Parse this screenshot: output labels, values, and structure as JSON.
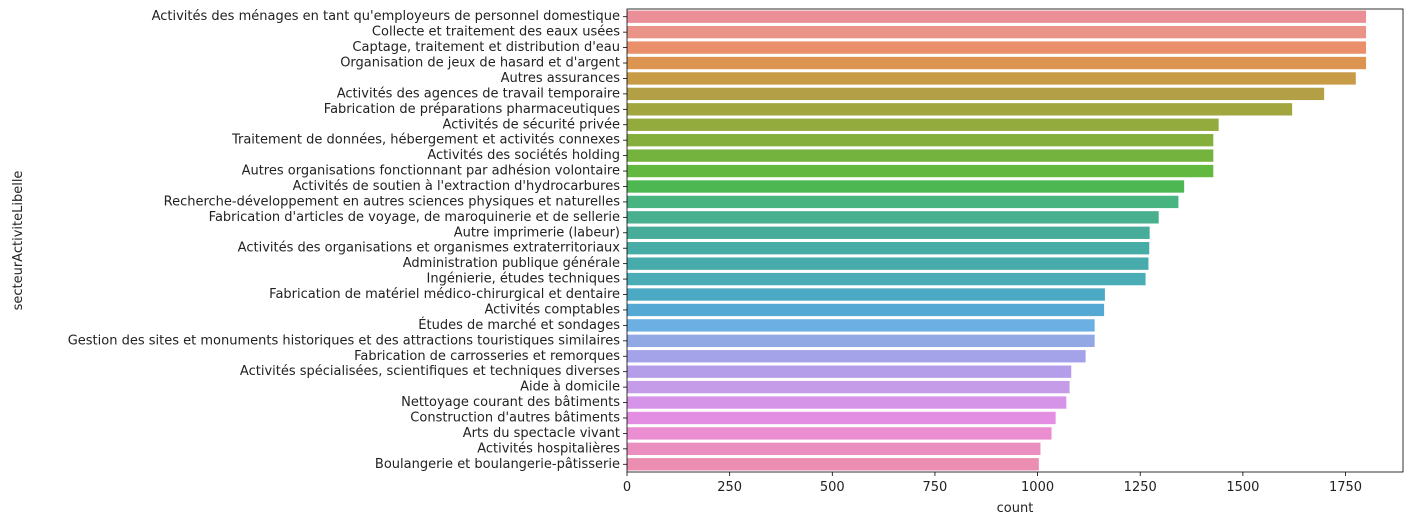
{
  "chart_data": {
    "type": "bar",
    "orientation": "horizontal",
    "title": "",
    "xlabel": "count",
    "ylabel": "secteurActiviteLibelle",
    "xlim": [
      0,
      1890
    ],
    "xticks": [
      "0",
      "250",
      "500",
      "750",
      "1000",
      "1250",
      "1500",
      "1750"
    ],
    "grid": false,
    "legend": "none",
    "categories": [
      "Activités des ménages en tant qu'employeurs de personnel domestique",
      "Collecte et traitement des eaux usées",
      "Captage, traitement et distribution d'eau",
      "Organisation de jeux de hasard et d'argent",
      "Autres assurances",
      "Activités des agences de travail temporaire",
      "Fabrication de préparations pharmaceutiques",
      "Activités de sécurité privée",
      "Traitement de données, hébergement et activités connexes",
      "Activités des sociétés holding",
      "Autres organisations fonctionnant par adhésion volontaire",
      "Activités de soutien à l'extraction d'hydrocarbures",
      "Recherche-développement en autres sciences physiques et naturelles",
      "Fabrication d'articles de voyage, de maroquinerie et de sellerie",
      "Autre imprimerie (labeur)",
      "Activités des organisations et organismes extraterritoriaux",
      "Administration publique générale",
      "Ingénierie, études techniques",
      "Fabrication de matériel médico-chirurgical et dentaire",
      "Activités comptables",
      "Études de marché et sondages",
      "Gestion des sites et monuments historiques et des attractions touristiques similaires",
      "Fabrication de carrosseries et remorques",
      "Activités spécialisées, scientifiques et techniques diverses",
      "Aide à domicile",
      "Nettoyage courant des bâtiments",
      "Construction d'autres bâtiments",
      "Arts du spectacle vivant",
      "Activités hospitalières",
      "Boulangerie et boulangerie-pâtisserie"
    ],
    "values": [
      1800,
      1800,
      1800,
      1800,
      1775,
      1698,
      1620,
      1441,
      1428,
      1428,
      1428,
      1357,
      1343,
      1295,
      1273,
      1272,
      1270,
      1263,
      1164,
      1162,
      1139,
      1139,
      1117,
      1082,
      1078,
      1070,
      1044,
      1034,
      1007,
      1003
    ],
    "colors": [
      "#ea8f98",
      "#ea9389",
      "#e98f69",
      "#db9550",
      "#c89b46",
      "#b3a046",
      "#a1a63e",
      "#93aa3c",
      "#84af3d",
      "#74b33d",
      "#63b93f",
      "#4db851",
      "#48b47f",
      "#48b08f",
      "#47ad9a",
      "#47aca5",
      "#48abab",
      "#4aacb4",
      "#4ba9c3",
      "#54a8d4",
      "#6cafe2",
      "#91a8e4",
      "#a4a3ea",
      "#b49eea",
      "#c59ce8",
      "#d694e8",
      "#e38ee2",
      "#ea8dd1",
      "#ea8fc0",
      "#eb8eb1"
    ]
  }
}
